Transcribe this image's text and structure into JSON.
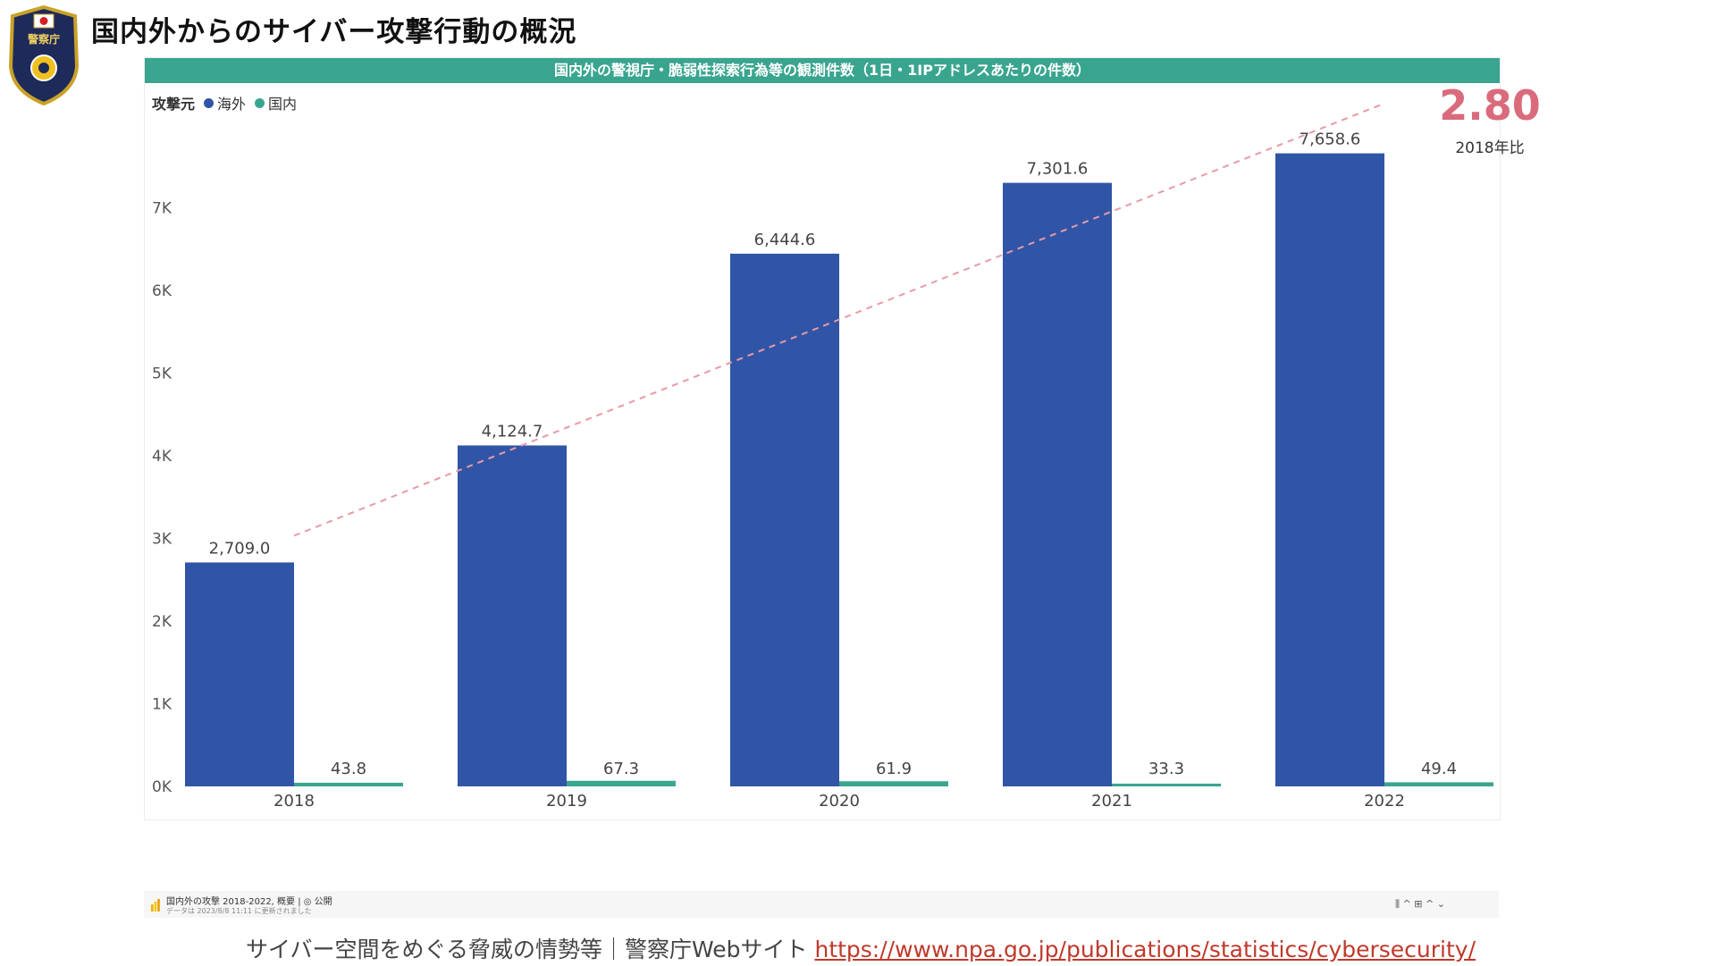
{
  "page": {
    "title": "国内外からのサイバー攻撃行動の概況",
    "footer_text": "サイバー空間をめぐる脅威の情勢等｜警察庁Webサイト ",
    "footer_link": "https://www.npa.go.jp/publications/statistics/cybersecurity/",
    "emblem_text": "警察庁"
  },
  "report": {
    "banner": "国内外の警視庁・脆弱性探索行為等の観測件数（1日・1IPアドレスあたりの件数）",
    "legend_title": "攻撃元",
    "kpi_value": "2.80",
    "kpi_label": "2018年比"
  },
  "taskbar": {
    "file_name": "国内外の攻撃 2018-2022, 概要 | ◎ 公開",
    "updated_text": "データは 2023/8/8 11:11 に更新されました",
    "controls": "⫼ ^   ⊞ ^      ⌄"
  },
  "colors": {
    "overseas": "#3155a6",
    "domestic": "#3aa58f",
    "trend": "#e89aa6",
    "kpi": "#d96b7c",
    "banner": "#3aa58f"
  },
  "chart_data": {
    "type": "bar",
    "categories": [
      "2018",
      "2019",
      "2020",
      "2021",
      "2022"
    ],
    "series": [
      {
        "name": "海外",
        "values": [
          2709.0,
          4124.7,
          6444.6,
          7301.6,
          7658.6
        ],
        "labels": [
          "2,709.0",
          "4,124.7",
          "6,444.6",
          "7,301.6",
          "7,658.6"
        ]
      },
      {
        "name": "国内",
        "values": [
          43.8,
          67.3,
          61.9,
          33.3,
          49.4
        ],
        "labels": [
          "43.8",
          "67.3",
          "61.9",
          "33.3",
          "49.4"
        ]
      }
    ],
    "y_ticks": [
      0,
      1000,
      2000,
      3000,
      4000,
      5000,
      6000,
      7000
    ],
    "y_tick_labels": [
      "0K",
      "1K",
      "2K",
      "3K",
      "4K",
      "5K",
      "6K",
      "7K"
    ],
    "ylim": [
      0,
      8000
    ],
    "trendline": {
      "series": "海外",
      "style": "dashed"
    },
    "legend_position": "top-left",
    "grid": false
  }
}
